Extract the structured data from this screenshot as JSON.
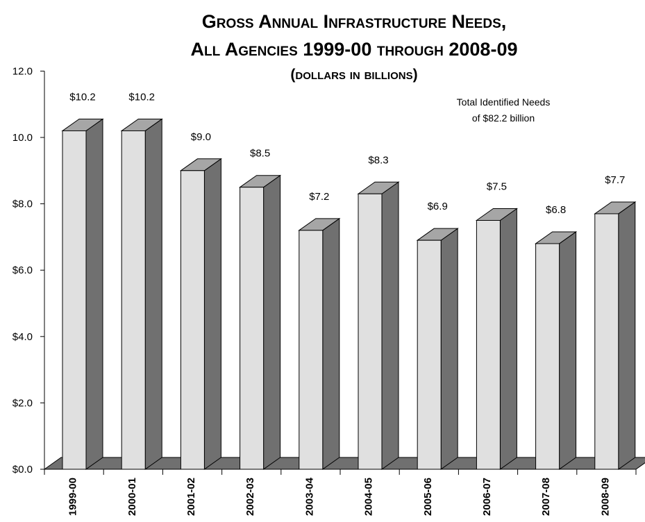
{
  "colors": {
    "bar_front": "#e0e0e0",
    "bar_top": "#a6a6a6",
    "bar_side": "#707070",
    "floor": "#707070",
    "outline": "#000000"
  },
  "chart_data": {
    "type": "bar",
    "title": "Gross Annual Infrastructure Needs,",
    "title_line2": "All Agencies 1999-00 through 2008-09",
    "subtitle": "(dollars in billions)",
    "annotation_line1": "Total Identified Needs",
    "annotation_line2": "of $82.2 billion",
    "categories": [
      "1999-00",
      "2000-01",
      "2001-02",
      "2002-03",
      "2003-04",
      "2004-05",
      "2005-06",
      "2006-07",
      "2007-08",
      "2008-09"
    ],
    "values": [
      10.2,
      10.2,
      9.0,
      8.5,
      7.2,
      8.3,
      6.9,
      7.5,
      6.8,
      7.7
    ],
    "value_labels": [
      "$10.2",
      "$10.2",
      "$9.0",
      "$8.5",
      "$7.2",
      "$8.3",
      "$6.9",
      "$7.5",
      "$6.8",
      "$7.7"
    ],
    "ylim": [
      0,
      12
    ],
    "y_ticks": [
      0,
      2,
      4,
      6,
      8,
      10,
      12
    ],
    "y_tick_labels": [
      "$0.0",
      "$2.0",
      "$4.0",
      "$6.0",
      "$8.0",
      "10.0",
      "12.0"
    ],
    "xlabel": "",
    "ylabel": "",
    "grid": false,
    "style": "3d-bar"
  }
}
